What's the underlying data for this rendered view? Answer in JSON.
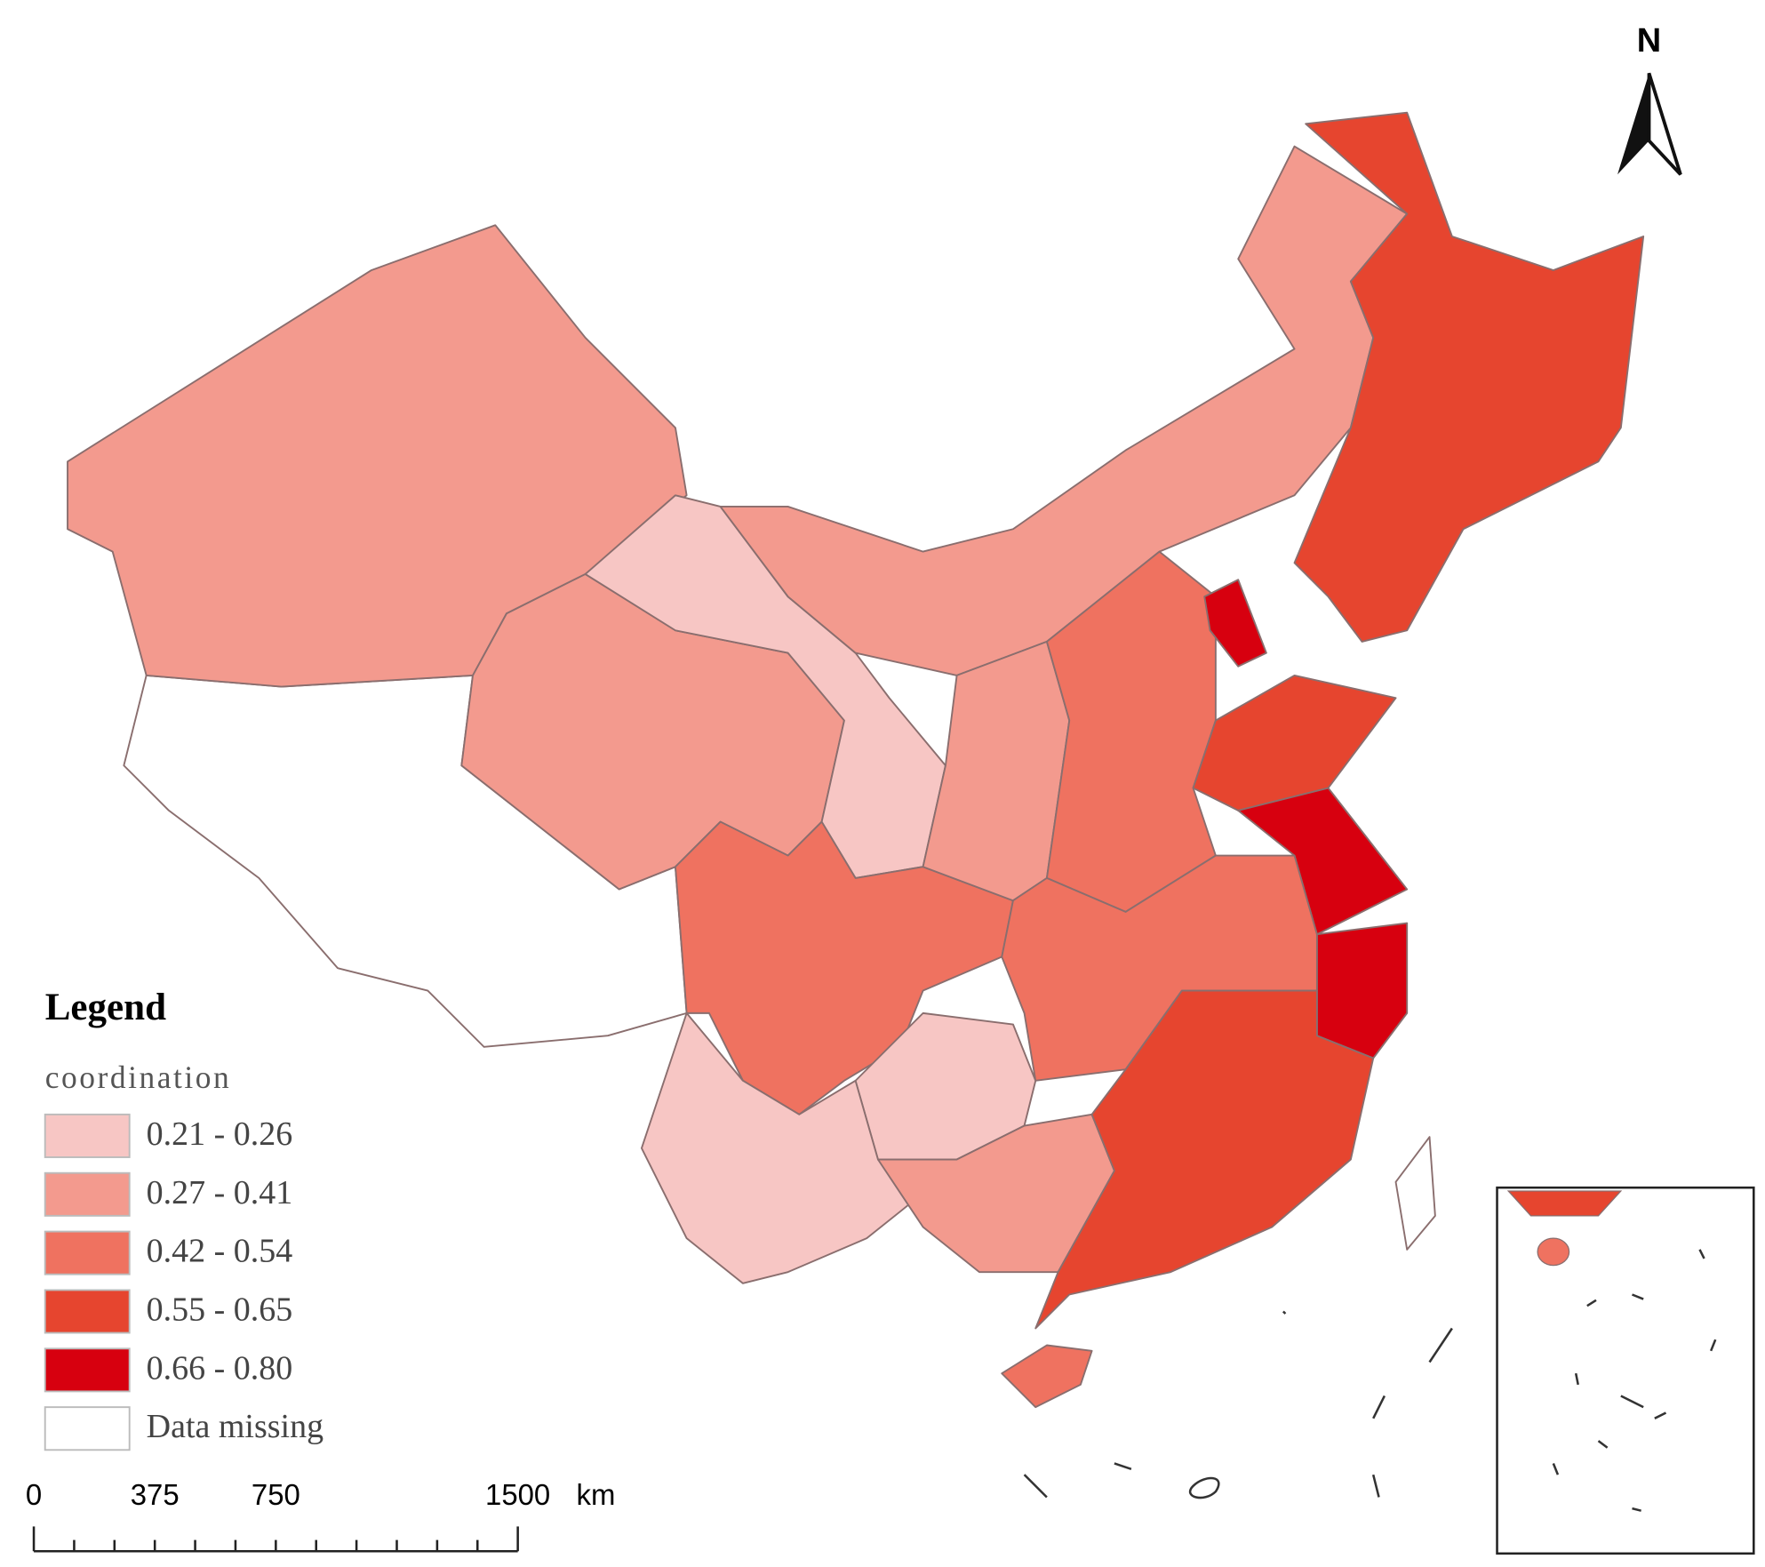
{
  "north": "N",
  "legend": {
    "title": "Legend",
    "field": "coordination",
    "items": [
      {
        "label": "0.21 - 0.26",
        "color": "#f7c6c4"
      },
      {
        "label": "0.27 - 0.41",
        "color": "#f39a8e"
      },
      {
        "label": "0.42 - 0.54",
        "color": "#ef7260"
      },
      {
        "label": "0.55 - 0.65",
        "color": "#e6452f"
      },
      {
        "label": "0.66 - 0.80",
        "color": "#d7000f"
      },
      {
        "label": "Data missing",
        "color": "#ffffff"
      }
    ]
  },
  "scale_bar": {
    "ticks": [
      0,
      375,
      750,
      1500
    ],
    "unit": "km"
  }
}
